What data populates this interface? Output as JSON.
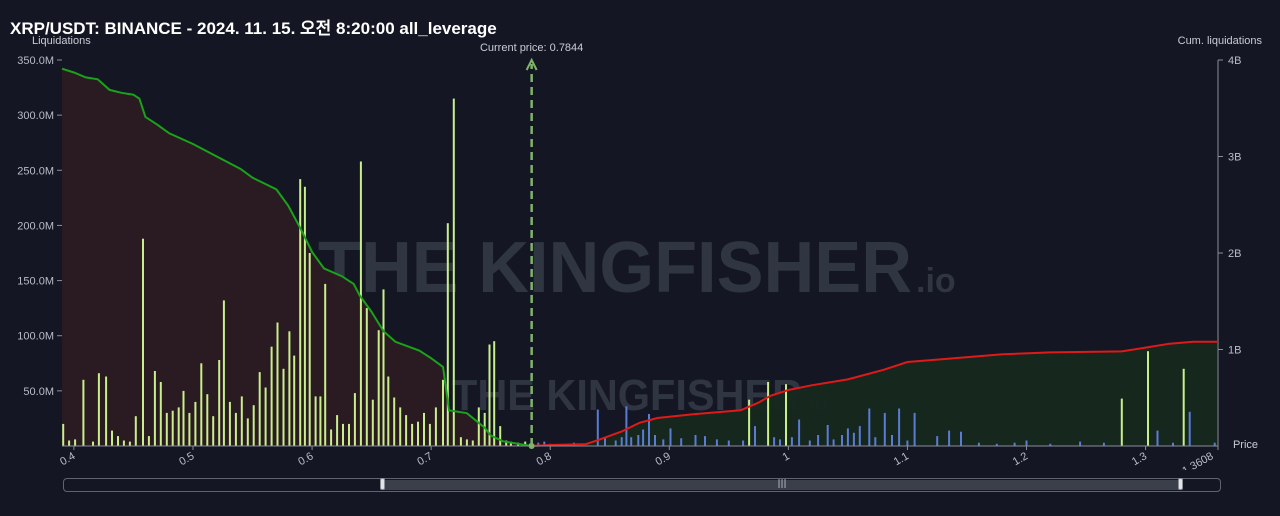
{
  "title": "XRP/USDT: BINANCE - 2024. 11. 15. 오전 8:20:00 all_leverage",
  "watermark": {
    "brand": "THE KINGFISHER",
    "suffix": ".io"
  },
  "colors": {
    "background": "#141723",
    "bar_green": "#c8ef8a",
    "bar_blue": "#5b7bd5",
    "cum_left_line": "#1aa31a",
    "cum_left_fill": "#2b1a22",
    "cum_right_line": "#e01919",
    "cum_right_fill": "#16281f",
    "current_price_line": "#7fb36b"
  },
  "chart_data": {
    "type": "bar",
    "x_axis": {
      "label": "Price",
      "range": [
        0.39,
        1.3608
      ],
      "ticks": [
        "0.4",
        "0.5",
        "0.6",
        "0.7",
        "0.8",
        "0.9",
        "1",
        "1.1",
        "1.2",
        "1.3",
        "1.3608"
      ]
    },
    "y_left": {
      "label": "Liquidations",
      "range": [
        0,
        350000000
      ],
      "ticks": [
        "50.0M",
        "100.0M",
        "150.0M",
        "200.0M",
        "250.0M",
        "300.0M",
        "350.0M"
      ]
    },
    "y_right": {
      "label": "Cum. liquidations",
      "range": [
        0,
        4000000000
      ],
      "ticks": [
        "1B",
        "2B",
        "3B",
        "4B"
      ]
    },
    "current_price": {
      "label": "Current price: 0.7844",
      "value": 0.7844
    },
    "liquidation_bars": [
      {
        "x": 0.391,
        "y": 20000000,
        "side": "long"
      },
      {
        "x": 0.396,
        "y": 5000000,
        "side": "long"
      },
      {
        "x": 0.401,
        "y": 6000000,
        "side": "long"
      },
      {
        "x": 0.408,
        "y": 60000000,
        "side": "long"
      },
      {
        "x": 0.416,
        "y": 4000000,
        "side": "long"
      },
      {
        "x": 0.421,
        "y": 66000000,
        "side": "long"
      },
      {
        "x": 0.427,
        "y": 63000000,
        "side": "long"
      },
      {
        "x": 0.432,
        "y": 14000000,
        "side": "long"
      },
      {
        "x": 0.437,
        "y": 9000000,
        "side": "long"
      },
      {
        "x": 0.442,
        "y": 5000000,
        "side": "long"
      },
      {
        "x": 0.447,
        "y": 4000000,
        "side": "long"
      },
      {
        "x": 0.452,
        "y": 27000000,
        "side": "long"
      },
      {
        "x": 0.458,
        "y": 188000000,
        "side": "long"
      },
      {
        "x": 0.463,
        "y": 9000000,
        "side": "long"
      },
      {
        "x": 0.468,
        "y": 68000000,
        "side": "long"
      },
      {
        "x": 0.473,
        "y": 58000000,
        "side": "long"
      },
      {
        "x": 0.478,
        "y": 30000000,
        "side": "long"
      },
      {
        "x": 0.483,
        "y": 32000000,
        "side": "long"
      },
      {
        "x": 0.488,
        "y": 35000000,
        "side": "long"
      },
      {
        "x": 0.492,
        "y": 50000000,
        "side": "long"
      },
      {
        "x": 0.497,
        "y": 30000000,
        "side": "long"
      },
      {
        "x": 0.502,
        "y": 40000000,
        "side": "long"
      },
      {
        "x": 0.507,
        "y": 75000000,
        "side": "long"
      },
      {
        "x": 0.512,
        "y": 47000000,
        "side": "long"
      },
      {
        "x": 0.517,
        "y": 27000000,
        "side": "long"
      },
      {
        "x": 0.522,
        "y": 78000000,
        "side": "long"
      },
      {
        "x": 0.526,
        "y": 132000000,
        "side": "long"
      },
      {
        "x": 0.531,
        "y": 40000000,
        "side": "long"
      },
      {
        "x": 0.536,
        "y": 30000000,
        "side": "long"
      },
      {
        "x": 0.541,
        "y": 45000000,
        "side": "long"
      },
      {
        "x": 0.546,
        "y": 25000000,
        "side": "long"
      },
      {
        "x": 0.551,
        "y": 37000000,
        "side": "long"
      },
      {
        "x": 0.556,
        "y": 67000000,
        "side": "long"
      },
      {
        "x": 0.561,
        "y": 53000000,
        "side": "long"
      },
      {
        "x": 0.566,
        "y": 90000000,
        "side": "long"
      },
      {
        "x": 0.571,
        "y": 112000000,
        "side": "long"
      },
      {
        "x": 0.576,
        "y": 70000000,
        "side": "long"
      },
      {
        "x": 0.581,
        "y": 104000000,
        "side": "long"
      },
      {
        "x": 0.585,
        "y": 82000000,
        "side": "long"
      },
      {
        "x": 0.59,
        "y": 242000000,
        "side": "long"
      },
      {
        "x": 0.594,
        "y": 235000000,
        "side": "long"
      },
      {
        "x": 0.598,
        "y": 175000000,
        "side": "long"
      },
      {
        "x": 0.603,
        "y": 45000000,
        "side": "long"
      },
      {
        "x": 0.607,
        "y": 45000000,
        "side": "long"
      },
      {
        "x": 0.611,
        "y": 147000000,
        "side": "long"
      },
      {
        "x": 0.616,
        "y": 15000000,
        "side": "long"
      },
      {
        "x": 0.621,
        "y": 28000000,
        "side": "long"
      },
      {
        "x": 0.626,
        "y": 20000000,
        "side": "long"
      },
      {
        "x": 0.631,
        "y": 20000000,
        "side": "long"
      },
      {
        "x": 0.636,
        "y": 48000000,
        "side": "long"
      },
      {
        "x": 0.641,
        "y": 258000000,
        "side": "long"
      },
      {
        "x": 0.646,
        "y": 125000000,
        "side": "long"
      },
      {
        "x": 0.651,
        "y": 42000000,
        "side": "long"
      },
      {
        "x": 0.656,
        "y": 105000000,
        "side": "long"
      },
      {
        "x": 0.66,
        "y": 142000000,
        "side": "long"
      },
      {
        "x": 0.664,
        "y": 63000000,
        "side": "long"
      },
      {
        "x": 0.669,
        "y": 44000000,
        "side": "long"
      },
      {
        "x": 0.674,
        "y": 35000000,
        "side": "long"
      },
      {
        "x": 0.679,
        "y": 28000000,
        "side": "long"
      },
      {
        "x": 0.684,
        "y": 20000000,
        "side": "long"
      },
      {
        "x": 0.689,
        "y": 22000000,
        "side": "long"
      },
      {
        "x": 0.694,
        "y": 30000000,
        "side": "long"
      },
      {
        "x": 0.699,
        "y": 20000000,
        "side": "long"
      },
      {
        "x": 0.704,
        "y": 35000000,
        "side": "long"
      },
      {
        "x": 0.71,
        "y": 60000000,
        "side": "long"
      },
      {
        "x": 0.714,
        "y": 202000000,
        "side": "long"
      },
      {
        "x": 0.719,
        "y": 315000000,
        "side": "long"
      },
      {
        "x": 0.725,
        "y": 8000000,
        "side": "long"
      },
      {
        "x": 0.73,
        "y": 6000000,
        "side": "long"
      },
      {
        "x": 0.735,
        "y": 5000000,
        "side": "long"
      },
      {
        "x": 0.74,
        "y": 35000000,
        "side": "long"
      },
      {
        "x": 0.745,
        "y": 30000000,
        "side": "long"
      },
      {
        "x": 0.749,
        "y": 92000000,
        "side": "long"
      },
      {
        "x": 0.753,
        "y": 95000000,
        "side": "long"
      },
      {
        "x": 0.758,
        "y": 18000000,
        "side": "long"
      },
      {
        "x": 0.763,
        "y": 5000000,
        "side": "long"
      },
      {
        "x": 0.767,
        "y": 4000000,
        "side": "long"
      },
      {
        "x": 0.773,
        "y": 3000000,
        "side": "long"
      },
      {
        "x": 0.779,
        "y": 4000000,
        "side": "long"
      },
      {
        "x": 0.783,
        "y": 2000000,
        "side": "long"
      },
      {
        "x": 0.79,
        "y": 3000000,
        "side": "short"
      },
      {
        "x": 0.795,
        "y": 4000000,
        "side": "short"
      },
      {
        "x": 0.8,
        "y": 2000000,
        "side": "short"
      },
      {
        "x": 0.82,
        "y": 3000000,
        "side": "short"
      },
      {
        "x": 0.84,
        "y": 33000000,
        "side": "short"
      },
      {
        "x": 0.846,
        "y": 8000000,
        "side": "short"
      },
      {
        "x": 0.855,
        "y": 5000000,
        "side": "short"
      },
      {
        "x": 0.86,
        "y": 8000000,
        "side": "short"
      },
      {
        "x": 0.864,
        "y": 36000000,
        "side": "short"
      },
      {
        "x": 0.868,
        "y": 8000000,
        "side": "short"
      },
      {
        "x": 0.874,
        "y": 10000000,
        "side": "short"
      },
      {
        "x": 0.878,
        "y": 15000000,
        "side": "short"
      },
      {
        "x": 0.883,
        "y": 29000000,
        "side": "short"
      },
      {
        "x": 0.888,
        "y": 10000000,
        "side": "short"
      },
      {
        "x": 0.895,
        "y": 6000000,
        "side": "short"
      },
      {
        "x": 0.901,
        "y": 16000000,
        "side": "short"
      },
      {
        "x": 0.91,
        "y": 7000000,
        "side": "short"
      },
      {
        "x": 0.922,
        "y": 10000000,
        "side": "short"
      },
      {
        "x": 0.93,
        "y": 9000000,
        "side": "short"
      },
      {
        "x": 0.94,
        "y": 6000000,
        "side": "short"
      },
      {
        "x": 0.95,
        "y": 5000000,
        "side": "short"
      },
      {
        "x": 0.962,
        "y": 5000000,
        "side": "short"
      },
      {
        "x": 0.967,
        "y": 42000000,
        "side": "short"
      },
      {
        "x": 0.972,
        "y": 18000000,
        "side": "short"
      },
      {
        "x": 0.983,
        "y": 58000000,
        "side": "short"
      },
      {
        "x": 0.988,
        "y": 8000000,
        "side": "short"
      },
      {
        "x": 0.993,
        "y": 6000000,
        "side": "short"
      },
      {
        "x": 0.998,
        "y": 56000000,
        "side": "short"
      },
      {
        "x": 1.003,
        "y": 8000000,
        "side": "short"
      },
      {
        "x": 1.009,
        "y": 24000000,
        "side": "short"
      },
      {
        "x": 1.018,
        "y": 5000000,
        "side": "short"
      },
      {
        "x": 1.025,
        "y": 10000000,
        "side": "short"
      },
      {
        "x": 1.033,
        "y": 19000000,
        "side": "short"
      },
      {
        "x": 1.038,
        "y": 6000000,
        "side": "short"
      },
      {
        "x": 1.045,
        "y": 10000000,
        "side": "short"
      },
      {
        "x": 1.05,
        "y": 16000000,
        "side": "short"
      },
      {
        "x": 1.055,
        "y": 12000000,
        "side": "short"
      },
      {
        "x": 1.06,
        "y": 18000000,
        "side": "short"
      },
      {
        "x": 1.068,
        "y": 34000000,
        "side": "short"
      },
      {
        "x": 1.073,
        "y": 8000000,
        "side": "short"
      },
      {
        "x": 1.081,
        "y": 30000000,
        "side": "short"
      },
      {
        "x": 1.087,
        "y": 10000000,
        "side": "short"
      },
      {
        "x": 1.093,
        "y": 34000000,
        "side": "short"
      },
      {
        "x": 1.1,
        "y": 5000000,
        "side": "short"
      },
      {
        "x": 1.106,
        "y": 30000000,
        "side": "short"
      },
      {
        "x": 1.125,
        "y": 9000000,
        "side": "short"
      },
      {
        "x": 1.135,
        "y": 14000000,
        "side": "short"
      },
      {
        "x": 1.145,
        "y": 13000000,
        "side": "short"
      },
      {
        "x": 1.16,
        "y": 3000000,
        "side": "short"
      },
      {
        "x": 1.175,
        "y": 2000000,
        "side": "short"
      },
      {
        "x": 1.19,
        "y": 3000000,
        "side": "short"
      },
      {
        "x": 1.2,
        "y": 5000000,
        "side": "short"
      },
      {
        "x": 1.22,
        "y": 2000000,
        "side": "short"
      },
      {
        "x": 1.245,
        "y": 4000000,
        "side": "short"
      },
      {
        "x": 1.265,
        "y": 3000000,
        "side": "short"
      },
      {
        "x": 1.28,
        "y": 43000000,
        "side": "short"
      },
      {
        "x": 1.302,
        "y": 86000000,
        "side": "short"
      },
      {
        "x": 1.31,
        "y": 14000000,
        "side": "short"
      },
      {
        "x": 1.323,
        "y": 3000000,
        "side": "short"
      },
      {
        "x": 1.332,
        "y": 70000000,
        "side": "short"
      },
      {
        "x": 1.337,
        "y": 31000000,
        "side": "short"
      },
      {
        "x": 1.358,
        "y": 3000000,
        "side": "short"
      }
    ],
    "cumulative_long": [
      {
        "x": 0.39,
        "y": 3910000000
      },
      {
        "x": 0.4,
        "y": 3870000000
      },
      {
        "x": 0.41,
        "y": 3820000000
      },
      {
        "x": 0.42,
        "y": 3800000000
      },
      {
        "x": 0.43,
        "y": 3690000000
      },
      {
        "x": 0.44,
        "y": 3660000000
      },
      {
        "x": 0.45,
        "y": 3640000000
      },
      {
        "x": 0.455,
        "y": 3600000000
      },
      {
        "x": 0.46,
        "y": 3410000000
      },
      {
        "x": 0.47,
        "y": 3330000000
      },
      {
        "x": 0.48,
        "y": 3240000000
      },
      {
        "x": 0.5,
        "y": 3130000000
      },
      {
        "x": 0.52,
        "y": 3000000000
      },
      {
        "x": 0.54,
        "y": 2870000000
      },
      {
        "x": 0.55,
        "y": 2780000000
      },
      {
        "x": 0.56,
        "y": 2720000000
      },
      {
        "x": 0.57,
        "y": 2660000000
      },
      {
        "x": 0.58,
        "y": 2490000000
      },
      {
        "x": 0.59,
        "y": 2260000000
      },
      {
        "x": 0.6,
        "y": 2010000000
      },
      {
        "x": 0.61,
        "y": 1840000000
      },
      {
        "x": 0.625,
        "y": 1760000000
      },
      {
        "x": 0.635,
        "y": 1680000000
      },
      {
        "x": 0.64,
        "y": 1560000000
      },
      {
        "x": 0.65,
        "y": 1390000000
      },
      {
        "x": 0.66,
        "y": 1190000000
      },
      {
        "x": 0.67,
        "y": 1080000000
      },
      {
        "x": 0.69,
        "y": 990000000
      },
      {
        "x": 0.7,
        "y": 910000000
      },
      {
        "x": 0.71,
        "y": 820000000
      },
      {
        "x": 0.715,
        "y": 370000000
      },
      {
        "x": 0.73,
        "y": 340000000
      },
      {
        "x": 0.745,
        "y": 190000000
      },
      {
        "x": 0.75,
        "y": 110000000
      },
      {
        "x": 0.76,
        "y": 50000000
      },
      {
        "x": 0.7844,
        "y": 0
      }
    ],
    "cumulative_short": [
      {
        "x": 0.7844,
        "y": 0
      },
      {
        "x": 0.8,
        "y": 10000000
      },
      {
        "x": 0.83,
        "y": 20000000
      },
      {
        "x": 0.84,
        "y": 60000000
      },
      {
        "x": 0.86,
        "y": 150000000
      },
      {
        "x": 0.875,
        "y": 240000000
      },
      {
        "x": 0.89,
        "y": 290000000
      },
      {
        "x": 0.92,
        "y": 330000000
      },
      {
        "x": 0.96,
        "y": 370000000
      },
      {
        "x": 0.975,
        "y": 450000000
      },
      {
        "x": 0.985,
        "y": 520000000
      },
      {
        "x": 1.0,
        "y": 580000000
      },
      {
        "x": 1.02,
        "y": 630000000
      },
      {
        "x": 1.05,
        "y": 690000000
      },
      {
        "x": 1.08,
        "y": 790000000
      },
      {
        "x": 1.1,
        "y": 870000000
      },
      {
        "x": 1.13,
        "y": 900000000
      },
      {
        "x": 1.18,
        "y": 950000000
      },
      {
        "x": 1.22,
        "y": 970000000
      },
      {
        "x": 1.28,
        "y": 980000000
      },
      {
        "x": 1.3,
        "y": 1020000000
      },
      {
        "x": 1.32,
        "y": 1060000000
      },
      {
        "x": 1.34,
        "y": 1080000000
      },
      {
        "x": 1.36,
        "y": 1080000000
      }
    ]
  }
}
